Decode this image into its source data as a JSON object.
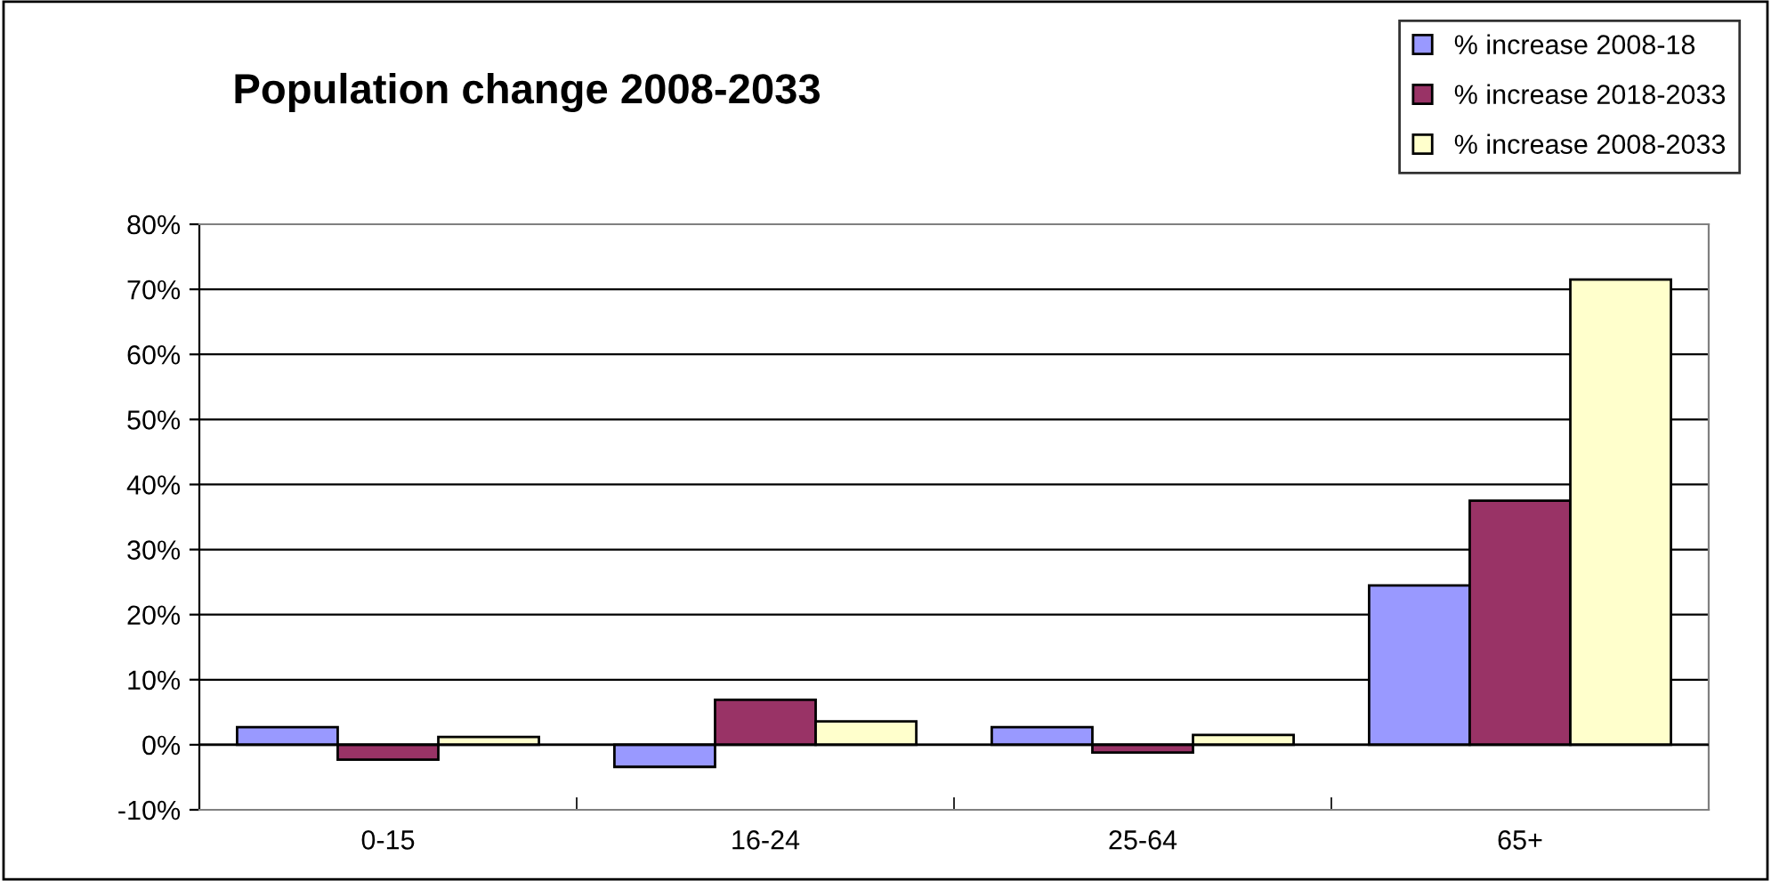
{
  "chart_data": {
    "type": "bar",
    "title": "Population change 2008-2033",
    "categories": [
      "0-15",
      "16-24",
      "25-64",
      "65+"
    ],
    "series": [
      {
        "name": "% increase 2008-18",
        "color": "#9999ff",
        "values": [
          2.7,
          -3.4,
          2.7,
          24.5
        ]
      },
      {
        "name": "% increase 2018-2033",
        "color": "#993366",
        "values": [
          -2.3,
          6.9,
          -1.2,
          37.5
        ]
      },
      {
        "name": "% increase 2008-2033",
        "color": "#ffffcc",
        "values": [
          1.2,
          3.6,
          1.5,
          71.5
        ]
      }
    ],
    "ylim": [
      -10,
      80
    ],
    "yticks": [
      {
        "value": -10,
        "label": "-10%"
      },
      {
        "value": 0,
        "label": "0%"
      },
      {
        "value": 10,
        "label": "10%"
      },
      {
        "value": 20,
        "label": "20%"
      },
      {
        "value": 30,
        "label": "30%"
      },
      {
        "value": 40,
        "label": "40%"
      },
      {
        "value": 50,
        "label": "50%"
      },
      {
        "value": 60,
        "label": "60%"
      },
      {
        "value": 70,
        "label": "70%"
      },
      {
        "value": 80,
        "label": "80%"
      }
    ],
    "grid": "y",
    "legend": "top right"
  }
}
